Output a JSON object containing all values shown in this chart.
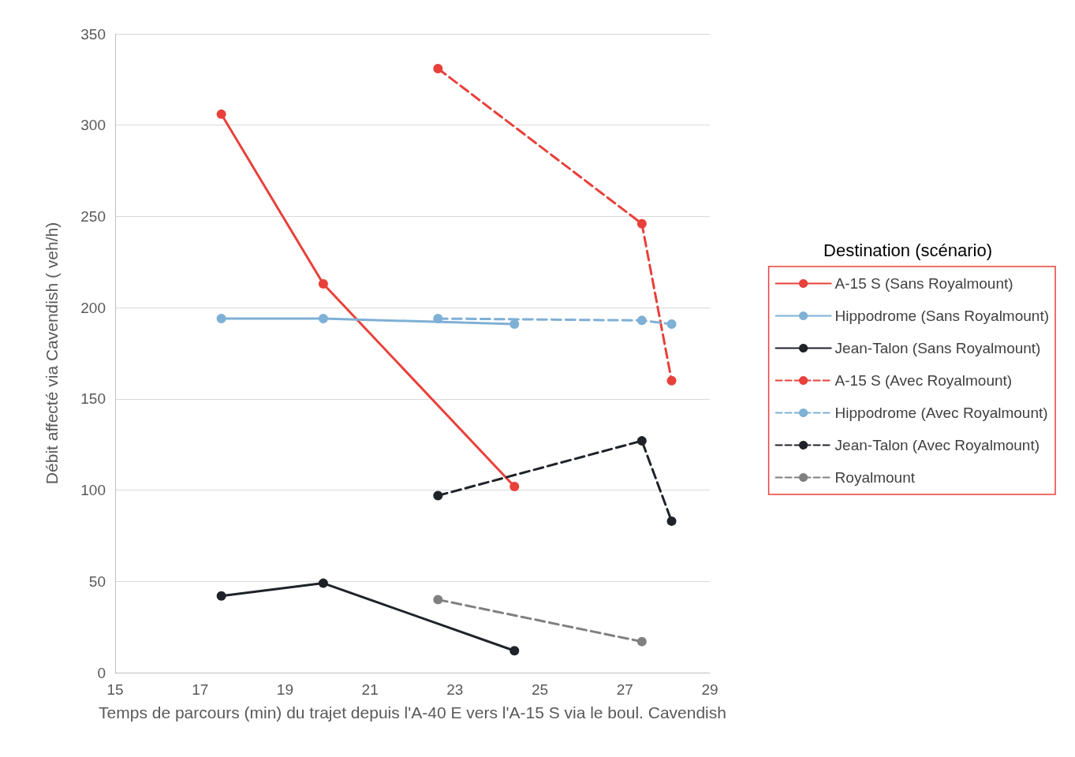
{
  "chart_data": {
    "type": "line",
    "xlabel": "Temps de parcours (min) du trajet depuis l'A-40 E vers l'A-15 S via le boul. Cavendish",
    "ylabel": "Débit affecté via Cavendish ( veh/h)",
    "legend_title": "Destination (scénario)",
    "xlim": [
      15,
      29
    ],
    "xticks": [
      15,
      17,
      19,
      21,
      23,
      25,
      27,
      29
    ],
    "ylim": [
      0,
      350
    ],
    "yticks": [
      0,
      50,
      100,
      150,
      200,
      250,
      300,
      350
    ],
    "grid": "y",
    "legend": "right",
    "marker": "circle",
    "series": [
      {
        "name": "A-15 S (Sans Royalmount)",
        "color": "#e8403a",
        "line_style": "solid",
        "x": [
          17.5,
          19.9,
          24.4
        ],
        "values": [
          306,
          213,
          102
        ]
      },
      {
        "name": "Hippodrome (Sans Royalmount)",
        "color": "#7fb0d5",
        "line_style": "solid",
        "x": [
          17.5,
          19.9,
          24.4
        ],
        "values": [
          194,
          194,
          191
        ]
      },
      {
        "name": "Jean-Talon (Sans Royalmount)",
        "color": "#1f2329",
        "line_style": "solid",
        "x": [
          17.5,
          19.9,
          24.4
        ],
        "values": [
          42,
          49,
          12
        ]
      },
      {
        "name": "A-15 S (Avec Royalmount)",
        "color": "#e8403a",
        "line_style": "dashed",
        "x": [
          22.6,
          27.4,
          28.1
        ],
        "values": [
          331,
          246,
          160
        ]
      },
      {
        "name": "Hippodrome (Avec Royalmount)",
        "color": "#7fb0d5",
        "line_style": "dashed",
        "x": [
          22.6,
          27.4,
          28.1
        ],
        "values": [
          194,
          193,
          191
        ]
      },
      {
        "name": "Jean-Talon (Avec Royalmount)",
        "color": "#1f2329",
        "line_style": "dashed",
        "x": [
          22.6,
          27.4,
          28.1
        ],
        "values": [
          97,
          127,
          83
        ]
      },
      {
        "name": "Royalmount",
        "color": "#808080",
        "line_style": "dashed",
        "x": [
          22.6,
          27.4
        ],
        "values": [
          40,
          17
        ]
      }
    ]
  }
}
